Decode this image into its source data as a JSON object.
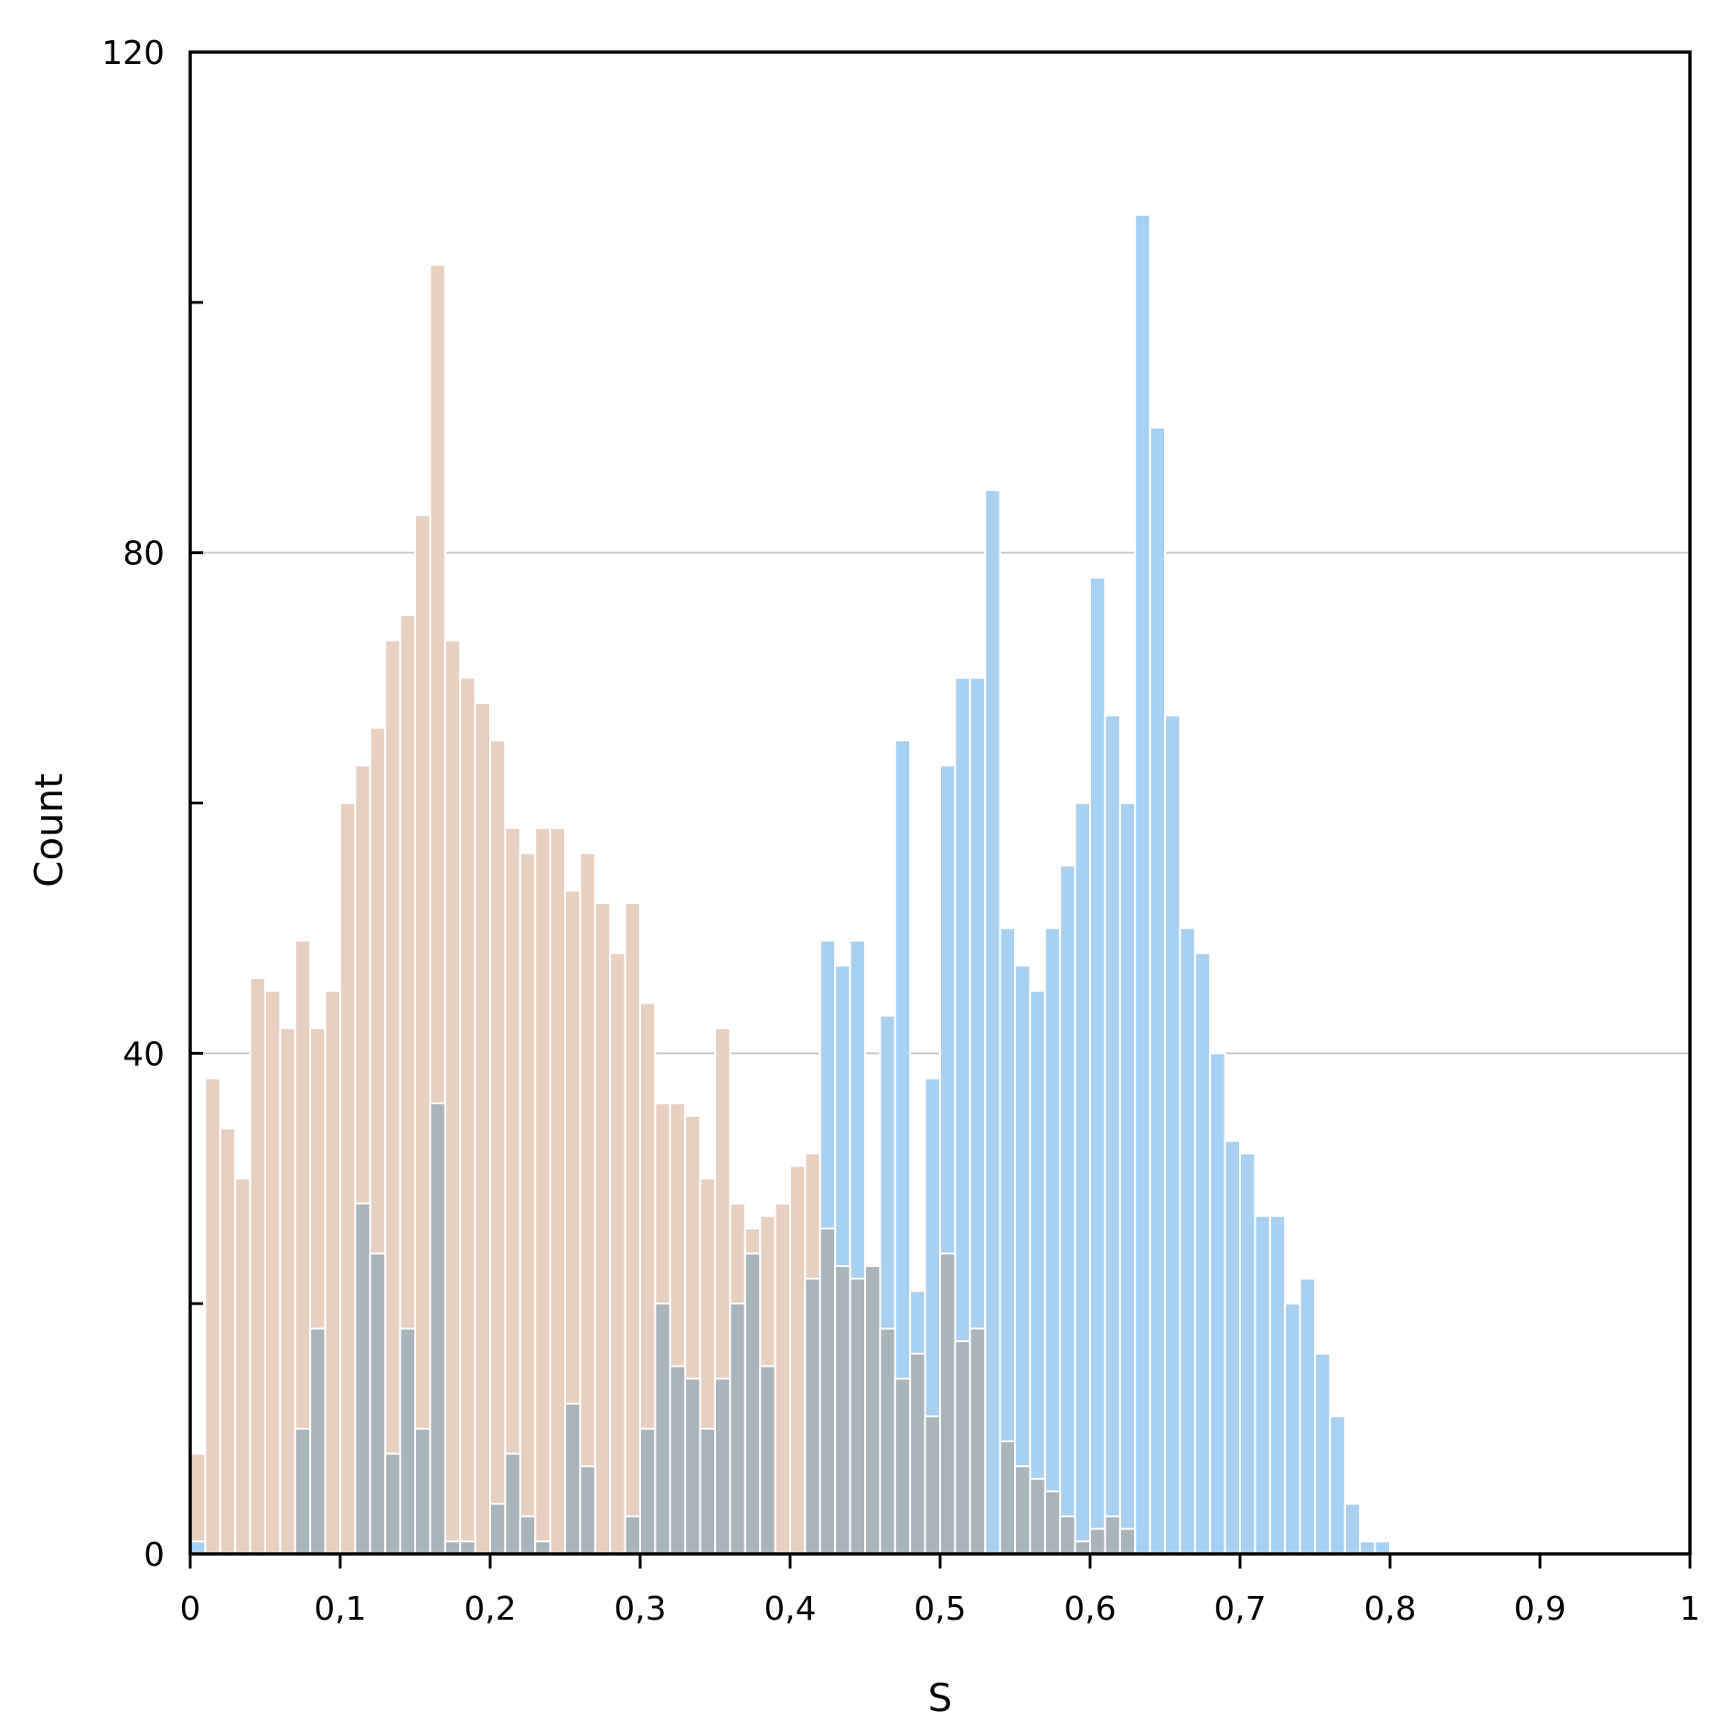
{
  "chart_data": {
    "type": "bar",
    "title": "",
    "xlabel": "S",
    "ylabel": "Count",
    "xlim": [
      0,
      1
    ],
    "ylim": [
      0,
      120
    ],
    "y_tick_labels": [
      "0",
      "40",
      "80",
      "120"
    ],
    "x_tick_labels": [
      "0",
      "0,1",
      "0,2",
      "0,3",
      "0,4",
      "0,5",
      "0,6",
      "0,7",
      "0,8",
      "0,9",
      "1"
    ],
    "grid": true,
    "bin_width": 0.01,
    "colors": {
      "series_a": "#e8d0c0",
      "series_b": "#a8d0f0",
      "overlap": "#a9b4bb",
      "gridline": "#c8c8c8",
      "axis": "#000000"
    },
    "series": [
      {
        "values": [
          8,
          38,
          34,
          30,
          46,
          45,
          42,
          49,
          42,
          45,
          60,
          63,
          66,
          73,
          75,
          83,
          103,
          73,
          70,
          68,
          65,
          58,
          56,
          58,
          58,
          53,
          56,
          52,
          48,
          52,
          44,
          36,
          36,
          35,
          30,
          42,
          28,
          26,
          27,
          28,
          31,
          32,
          26,
          22,
          20,
          18,
          14,
          20,
          10,
          22,
          16,
          16,
          14,
          10,
          5,
          0,
          0,
          0,
          0,
          0,
          0,
          0,
          0,
          0,
          0,
          0,
          0,
          0,
          0,
          0,
          0,
          0,
          0,
          0,
          0,
          0,
          0,
          0,
          0,
          0,
          0,
          0,
          0,
          0,
          0,
          0,
          0,
          0,
          0,
          0,
          0,
          0,
          0,
          0,
          0,
          0,
          0,
          0,
          0,
          0
        ]
      },
      {
        "values": [
          1,
          0,
          0,
          0,
          0,
          0,
          0,
          0,
          0,
          0,
          0,
          0,
          0,
          0,
          0,
          0,
          0,
          0,
          0,
          0,
          0,
          0,
          0,
          0,
          0,
          0,
          0,
          0,
          0,
          0,
          0,
          0,
          0,
          0,
          0,
          0,
          0,
          0,
          0,
          0,
          0,
          0,
          49,
          47,
          49,
          23,
          43,
          65,
          21,
          38,
          63,
          70,
          70,
          85,
          50,
          47,
          45,
          50,
          55,
          60,
          78,
          67,
          60,
          107,
          90,
          67,
          50,
          48,
          40,
          33,
          32,
          27,
          27,
          20,
          22,
          16,
          11,
          4,
          1,
          1,
          0,
          0,
          0,
          0,
          0,
          0,
          0,
          0,
          0,
          0,
          0,
          0,
          0,
          0,
          0,
          0,
          0,
          0,
          0,
          0
        ]
      },
      {
        "values": [
          0,
          0,
          0,
          0,
          0,
          0,
          0,
          10,
          18,
          0,
          0,
          28,
          24,
          8,
          18,
          10,
          36,
          1,
          1,
          0,
          4,
          8,
          3,
          1,
          0,
          12,
          7,
          0,
          0,
          3,
          10,
          20,
          15,
          14,
          10,
          14,
          20,
          24,
          15,
          0,
          0,
          22,
          26,
          23,
          22,
          23,
          18,
          14,
          16,
          11,
          24,
          17,
          18,
          0,
          9,
          7,
          6,
          5,
          3,
          1,
          2,
          3,
          2,
          0,
          0,
          0,
          0,
          0,
          0,
          0,
          0,
          0,
          0,
          0,
          0,
          0,
          0,
          0,
          0,
          0,
          0,
          0,
          0,
          0,
          0,
          0,
          0,
          0,
          0,
          0,
          0,
          0,
          0,
          0,
          0,
          0,
          0,
          0,
          0,
          0
        ]
      }
    ]
  }
}
